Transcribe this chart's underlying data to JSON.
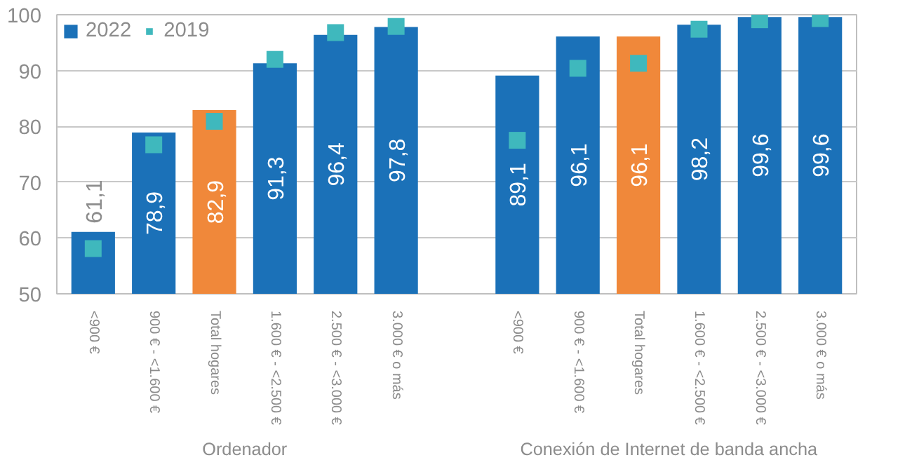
{
  "chart_data": {
    "type": "bar",
    "categories": [
      "<900 €",
      "900 € - <1.600 €",
      "Total hogares",
      "1.600 € - <2.500 €",
      "2.500 € - <3.000 €",
      "3.000 € o más",
      null,
      "<900 €",
      "900 € - <1.600 €",
      "Total hogares",
      "1.600 € - <2.500 €",
      "2.500 € - <3.000 €",
      "3.000 € o más"
    ],
    "series": [
      {
        "name": "2022",
        "color": "#1b71b8",
        "colors": [
          null,
          null,
          "#f0883a",
          null,
          null,
          null,
          null,
          null,
          null,
          "#f0883a",
          null,
          null,
          null
        ],
        "values": [
          61.1,
          78.9,
          82.9,
          91.3,
          96.4,
          97.8,
          null,
          89.1,
          96.1,
          96.1,
          98.2,
          99.6,
          99.6
        ],
        "value_labels": [
          "61,1",
          "78,9",
          "82,9",
          "91,3",
          "96,4",
          "97,8",
          null,
          "89,1",
          "96,1",
          "96,1",
          "98,2",
          "99,6",
          "99,6"
        ]
      },
      {
        "name": "2019",
        "type": "scatter",
        "marker": "square",
        "color": "#3fb8bd",
        "values": [
          58.1,
          76.7,
          80.9,
          92.0,
          96.8,
          97.9,
          null,
          77.5,
          90.4,
          91.3,
          97.4,
          99.1,
          99.3
        ]
      }
    ],
    "annotations": [
      "Ordenador",
      "Conexión de Internet de banda ancha"
    ],
    "ylim": [
      50,
      100
    ],
    "yticks": [
      50,
      60,
      70,
      80,
      90,
      100
    ],
    "grid": "y",
    "legend": "top left"
  }
}
